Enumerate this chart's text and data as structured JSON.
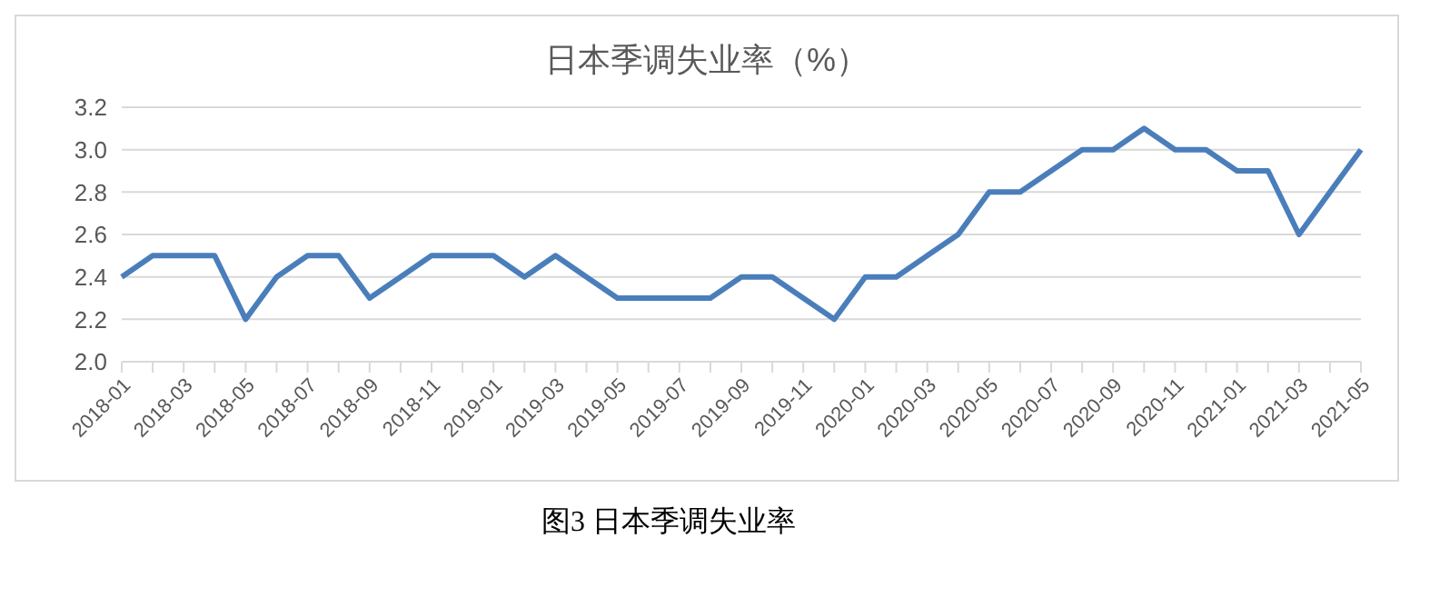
{
  "chart_data": {
    "type": "line",
    "title": "日本季调失业率（%）",
    "categories": [
      "2018-01",
      null,
      "2018-03",
      null,
      "2018-05",
      null,
      "2018-07",
      null,
      "2018-09",
      null,
      "2018-11",
      null,
      "2019-01",
      null,
      "2019-03",
      null,
      "2019-05",
      null,
      "2019-07",
      null,
      "2019-09",
      null,
      "2019-11",
      null,
      "2020-01",
      null,
      "2020-03",
      null,
      "2020-05",
      null,
      "2020-07",
      null,
      "2020-09",
      null,
      "2020-11",
      null,
      "2021-01",
      null,
      "2021-03",
      null,
      "2021-05"
    ],
    "series": [
      {
        "color": "#4a7ebb",
        "values": [
          2.4,
          2.5,
          2.5,
          2.5,
          2.2,
          2.4,
          2.5,
          2.5,
          2.3,
          2.4,
          2.5,
          2.5,
          2.5,
          2.4,
          2.5,
          2.4,
          2.3,
          2.3,
          2.3,
          2.3,
          2.4,
          2.4,
          2.3,
          2.2,
          2.4,
          2.4,
          2.5,
          2.6,
          2.8,
          2.8,
          2.9,
          3.0,
          3.0,
          3.1,
          3.0,
          3.0,
          2.9,
          2.9,
          2.6,
          2.8,
          3.0
        ]
      }
    ],
    "ylim": [
      2,
      3.2
    ],
    "yticks": [
      {
        "value": 2,
        "label": "2.0"
      },
      2.2,
      2.4,
      2.6,
      2.8,
      {
        "value": 3,
        "label": "3.0"
      },
      3.2
    ],
    "grid": "y",
    "legend": false,
    "marker": "none",
    "line_style": "solid",
    "annotations": [
      "图3 日本季调失业率"
    ]
  }
}
